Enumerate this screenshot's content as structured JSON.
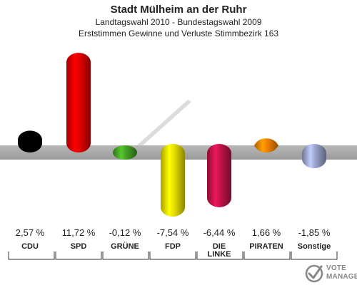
{
  "title": "Stadt Mülheim an der Ruhr",
  "subtitle1": "Landtagswahl 2010 - Bundestagswahl 2009",
  "subtitle2": "Erststimmen Gewinne und Verluste Stimmbezirk 163",
  "logo": {
    "line1": "VOTE",
    "line2": "MANAGER"
  },
  "chart_data": {
    "type": "bar",
    "categories": [
      "CDU",
      "SPD",
      "GRÜNE",
      "FDP",
      "DIE LINKE",
      "PIRATEN",
      "Sonstige"
    ],
    "category_lines": [
      [
        "CDU"
      ],
      [
        "SPD"
      ],
      [
        "GRÜNE"
      ],
      [
        "FDP"
      ],
      [
        "DIE",
        "LINKE"
      ],
      [
        "PIRATEN"
      ],
      [
        "Sonstige"
      ]
    ],
    "values": [
      2.57,
      11.72,
      -0.12,
      -7.54,
      -6.44,
      1.66,
      -1.85
    ],
    "value_labels": [
      "2,57 %",
      "11,72 %",
      "-0,12 %",
      "-7,54 %",
      "-6,44 %",
      "1,66 %",
      "-1,85 %"
    ],
    "colors": [
      "#000000",
      "#e00000",
      "#44a025",
      "#e8e000",
      "#c0124a",
      "#f08000",
      "#9aa4cc"
    ],
    "title": "Stadt Mülheim an der Ruhr",
    "xlabel": "",
    "ylabel": ""
  }
}
